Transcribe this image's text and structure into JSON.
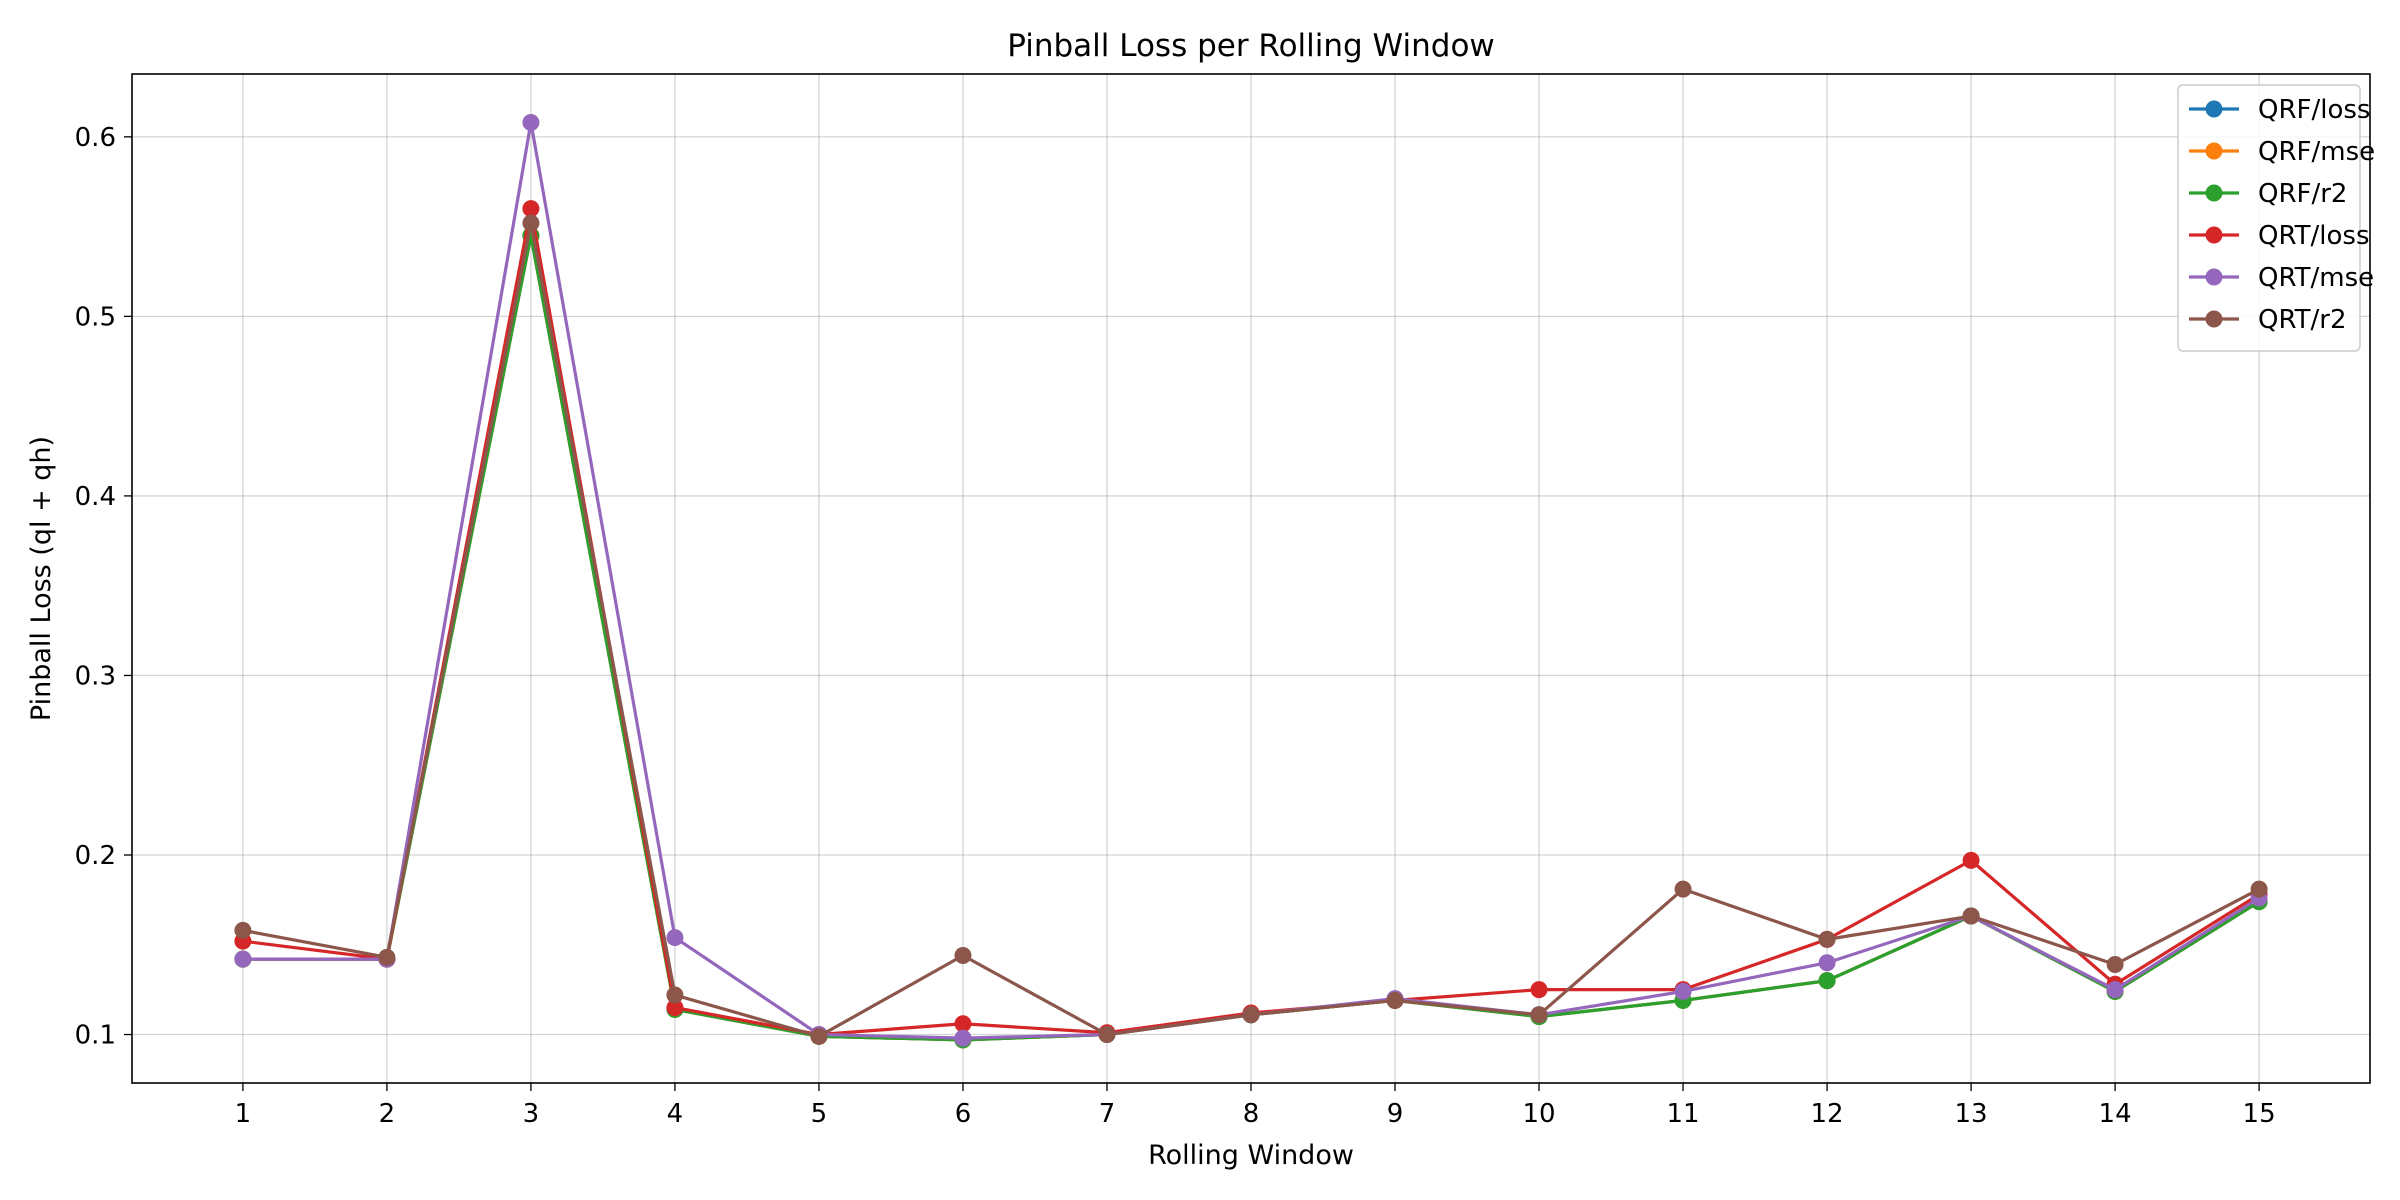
{
  "chart_data": {
    "type": "line",
    "title": "Pinball Loss per Rolling Window",
    "xlabel": "Rolling Window",
    "ylabel": "Pinball Loss (ql + qh)",
    "x": [
      1,
      2,
      3,
      4,
      5,
      6,
      7,
      8,
      9,
      10,
      11,
      12,
      13,
      14,
      15
    ],
    "xlim": [
      0.23,
      15.77
    ],
    "ylim": [
      0.073,
      0.635
    ],
    "yticks": [
      0.1,
      0.2,
      0.3,
      0.4,
      0.5,
      0.6
    ],
    "ytick_labels": [
      "0.1",
      "0.2",
      "0.3",
      "0.4",
      "0.5",
      "0.6"
    ],
    "xtick_labels": [
      "1",
      "2",
      "3",
      "4",
      "5",
      "6",
      "7",
      "8",
      "9",
      "10",
      "11",
      "12",
      "13",
      "14",
      "15"
    ],
    "grid": true,
    "legend_position": "top-right",
    "markers": "circle",
    "series": [
      {
        "name": "QRF/loss",
        "color": "#1f77b4",
        "values": [
          0.142,
          0.142,
          0.545,
          0.114,
          0.099,
          0.097,
          0.1,
          0.111,
          0.119,
          0.11,
          0.119,
          0.13,
          0.166,
          0.124,
          0.174
        ]
      },
      {
        "name": "QRF/mse",
        "color": "#ff7f0e",
        "values": [
          0.142,
          0.142,
          0.545,
          0.114,
          0.099,
          0.097,
          0.1,
          0.111,
          0.119,
          0.11,
          0.119,
          0.13,
          0.166,
          0.124,
          0.174
        ]
      },
      {
        "name": "QRF/r2",
        "color": "#2ca02c",
        "values": [
          0.142,
          0.142,
          0.545,
          0.114,
          0.099,
          0.097,
          0.1,
          0.111,
          0.119,
          0.11,
          0.119,
          0.13,
          0.166,
          0.124,
          0.174
        ]
      },
      {
        "name": "QRT/loss",
        "color": "#d62728",
        "values": [
          0.152,
          0.142,
          0.56,
          0.115,
          0.1,
          0.106,
          0.101,
          0.112,
          0.119,
          0.125,
          0.125,
          0.153,
          0.197,
          0.128,
          0.178
        ]
      },
      {
        "name": "QRT/mse",
        "color": "#9467bd",
        "values": [
          0.142,
          0.142,
          0.608,
          0.154,
          0.1,
          0.098,
          0.1,
          0.111,
          0.12,
          0.111,
          0.124,
          0.14,
          0.166,
          0.125,
          0.176
        ]
      },
      {
        "name": "QRT/r2",
        "color": "#8c564b",
        "values": [
          0.158,
          0.143,
          0.552,
          0.122,
          0.099,
          0.144,
          0.1,
          0.111,
          0.119,
          0.111,
          0.181,
          0.153,
          0.166,
          0.139,
          0.181
        ]
      }
    ]
  }
}
